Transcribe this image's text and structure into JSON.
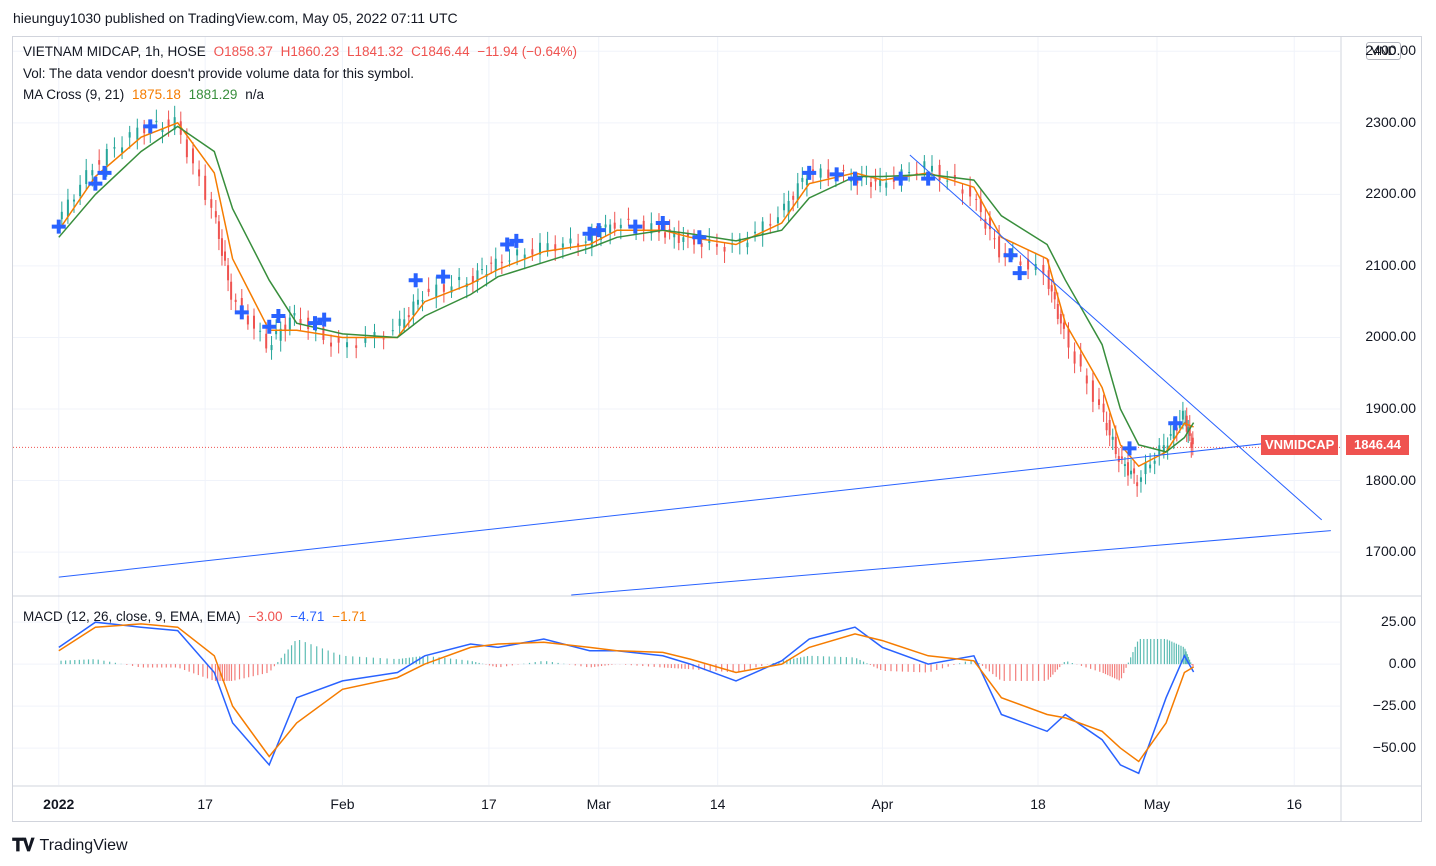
{
  "header": {
    "published_line": "hieunguy1030 published on TradingView.com, May 05, 2022 07:11 UTC"
  },
  "legend": {
    "symbol_line": {
      "name": "VIETNAM MIDCAP, 1h, HOSE",
      "open": "O1858.37",
      "high": "H1860.23",
      "low": "L1841.32",
      "close": "C1846.44",
      "change": "−11.94 (−0.64%)"
    },
    "volume_line": "Vol: The data vendor doesn't provide volume data for this symbol.",
    "ma_cross": {
      "label": "MA Cross (9, 21)",
      "fast": "1875.18",
      "slow": "1881.29",
      "third": "n/a"
    },
    "macd": {
      "label": "MACD (12, 26, close, 9, EMA, EMA)",
      "hist": "−3.00",
      "macd": "−4.71",
      "signal": "−1.71"
    }
  },
  "currency_badge": "VND",
  "price_tag": {
    "symbol": "VNMIDCAP",
    "value": "1846.44"
  },
  "footer": {
    "brand": "TradingView"
  },
  "colors": {
    "up": "#26a69a",
    "down": "#ef5350",
    "ma_fast": "#f57c00",
    "ma_slow": "#388e3c",
    "macd_line": "#2962ff",
    "signal_line": "#f57c00",
    "trendline": "#2962ff",
    "cross": "#2962ff"
  },
  "chart_data": [
    {
      "type": "line",
      "title": "VIETNAM MIDCAP, 1h, HOSE",
      "price_axis_ticks": [
        "2400.00",
        "2300.00",
        "2200.00",
        "2100.00",
        "2000.00",
        "1900.00",
        "1800.00",
        "1700.00"
      ],
      "time_axis_ticks": [
        "2022",
        "17",
        "Feb",
        "17",
        "Mar",
        "14",
        "Apr",
        "18",
        "May",
        "16"
      ],
      "ylim": [
        1640,
        2420
      ],
      "last_price": 1846.44,
      "dates": [
        "2022-01-01",
        "2022-01-05",
        "2022-01-10",
        "2022-01-14",
        "2022-01-18",
        "2022-01-20",
        "2022-01-24",
        "2022-01-27",
        "2022-02-01",
        "2022-02-07",
        "2022-02-10",
        "2022-02-15",
        "2022-02-18",
        "2022-02-23",
        "2022-02-28",
        "2022-03-03",
        "2022-03-08",
        "2022-03-11",
        "2022-03-16",
        "2022-03-21",
        "2022-03-24",
        "2022-03-29",
        "2022-04-01",
        "2022-04-06",
        "2022-04-11",
        "2022-04-14",
        "2022-04-19",
        "2022-04-21",
        "2022-04-25",
        "2022-04-27",
        "2022-04-29",
        "2022-05-02",
        "2022-05-04",
        "2022-05-05"
      ],
      "close": [
        2160,
        2240,
        2290,
        2300,
        2180,
        2060,
        1990,
        2030,
        1985,
        2010,
        2060,
        2080,
        2105,
        2125,
        2135,
        2160,
        2150,
        2135,
        2125,
        2170,
        2230,
        2225,
        2215,
        2240,
        2200,
        2120,
        2090,
        2005,
        1900,
        1830,
        1800,
        1850,
        1890,
        1846
      ],
      "series": [
        {
          "name": "MA Cross (9, 21)",
          "values": [
            2150,
            2225,
            2280,
            2300,
            2230,
            2110,
            2010,
            2010,
            2000,
            2000,
            2050,
            2075,
            2095,
            2120,
            2130,
            2150,
            2150,
            2140,
            2130,
            2160,
            2215,
            2230,
            2220,
            2230,
            2210,
            2140,
            2110,
            2020,
            1930,
            1850,
            1820,
            1840,
            1880,
            1875
          ]
        },
        {
          "name": "",
          "values": [
            2140,
            2200,
            2260,
            2295,
            2260,
            2180,
            2080,
            2020,
            2005,
            2000,
            2030,
            2060,
            2085,
            2105,
            2125,
            2140,
            2150,
            2145,
            2135,
            2150,
            2195,
            2225,
            2225,
            2228,
            2220,
            2170,
            2130,
            2080,
            1990,
            1900,
            1850,
            1840,
            1860,
            1881
          ]
        }
      ],
      "trendlines": [
        {
          "from": [
            "2022-01-01",
            1665
          ],
          "to": [
            "2022-05-20",
            1862
          ]
        },
        {
          "from": [
            "2022-02-26",
            1640
          ],
          "to": [
            "2022-05-20",
            1730
          ]
        },
        {
          "from": [
            "2022-04-04",
            2255
          ],
          "to": [
            "2022-05-19",
            1745
          ]
        }
      ],
      "cross_markers": [
        [
          "2022-01-01",
          2155
        ],
        [
          "2022-01-05",
          2215
        ],
        [
          "2022-01-06",
          2230
        ],
        [
          "2022-01-11",
          2295
        ],
        [
          "2022-01-21",
          2035
        ],
        [
          "2022-01-24",
          2015
        ],
        [
          "2022-01-25",
          2030
        ],
        [
          "2022-01-29",
          2020
        ],
        [
          "2022-01-30",
          2025
        ],
        [
          "2022-02-09",
          2080
        ],
        [
          "2022-02-12",
          2085
        ],
        [
          "2022-02-19",
          2130
        ],
        [
          "2022-02-20",
          2135
        ],
        [
          "2022-02-28",
          2145
        ],
        [
          "2022-03-01",
          2150
        ],
        [
          "2022-03-05",
          2155
        ],
        [
          "2022-03-08",
          2160
        ],
        [
          "2022-03-12",
          2140
        ],
        [
          "2022-03-24",
          2230
        ],
        [
          "2022-03-27",
          2228
        ],
        [
          "2022-03-29",
          2222
        ],
        [
          "2022-04-03",
          2222
        ],
        [
          "2022-04-06",
          2222
        ],
        [
          "2022-04-15",
          2115
        ],
        [
          "2022-04-16",
          2090
        ],
        [
          "2022-04-28",
          1845
        ],
        [
          "2022-05-03",
          1880
        ]
      ]
    },
    {
      "type": "line",
      "title": "MACD (12, 26, close, 9, EMA, EMA)",
      "price_axis_ticks": [
        "25.00",
        "0.00",
        "−25.00",
        "−50.00"
      ],
      "ylim": [
        -72,
        40
      ],
      "dates": [
        "2022-01-01",
        "2022-01-05",
        "2022-01-10",
        "2022-01-14",
        "2022-01-18",
        "2022-01-20",
        "2022-01-24",
        "2022-01-27",
        "2022-02-01",
        "2022-02-07",
        "2022-02-10",
        "2022-02-15",
        "2022-02-18",
        "2022-02-23",
        "2022-02-28",
        "2022-03-03",
        "2022-03-08",
        "2022-03-11",
        "2022-03-16",
        "2022-03-21",
        "2022-03-24",
        "2022-03-29",
        "2022-04-01",
        "2022-04-06",
        "2022-04-11",
        "2022-04-14",
        "2022-04-19",
        "2022-04-21",
        "2022-04-25",
        "2022-04-27",
        "2022-04-29",
        "2022-05-02",
        "2022-05-04",
        "2022-05-05"
      ],
      "series": [
        {
          "name": "MACD",
          "values": [
            10,
            25,
            22,
            20,
            -5,
            -35,
            -60,
            -20,
            -10,
            -5,
            5,
            12,
            10,
            15,
            8,
            8,
            5,
            0,
            -10,
            2,
            15,
            22,
            10,
            0,
            5,
            -30,
            -40,
            -30,
            -45,
            -60,
            -65,
            -20,
            5,
            -4.71
          ]
        },
        {
          "name": "Signal",
          "values": [
            8,
            22,
            24,
            22,
            5,
            -25,
            -55,
            -35,
            -15,
            -8,
            0,
            10,
            12,
            13,
            10,
            8,
            7,
            3,
            -5,
            0,
            10,
            18,
            14,
            5,
            2,
            -20,
            -30,
            -32,
            -40,
            -50,
            -58,
            -35,
            -5,
            -1.71
          ]
        },
        {
          "name": "Histogram",
          "values": [
            2,
            3,
            -2,
            -2,
            -10,
            -10,
            -5,
            15,
            5,
            3,
            5,
            2,
            -2,
            2,
            -2,
            0,
            -2,
            -3,
            -5,
            2,
            5,
            4,
            -4,
            -5,
            3,
            -10,
            -10,
            2,
            -5,
            -10,
            15,
            15,
            10,
            -3.0
          ]
        }
      ]
    }
  ]
}
